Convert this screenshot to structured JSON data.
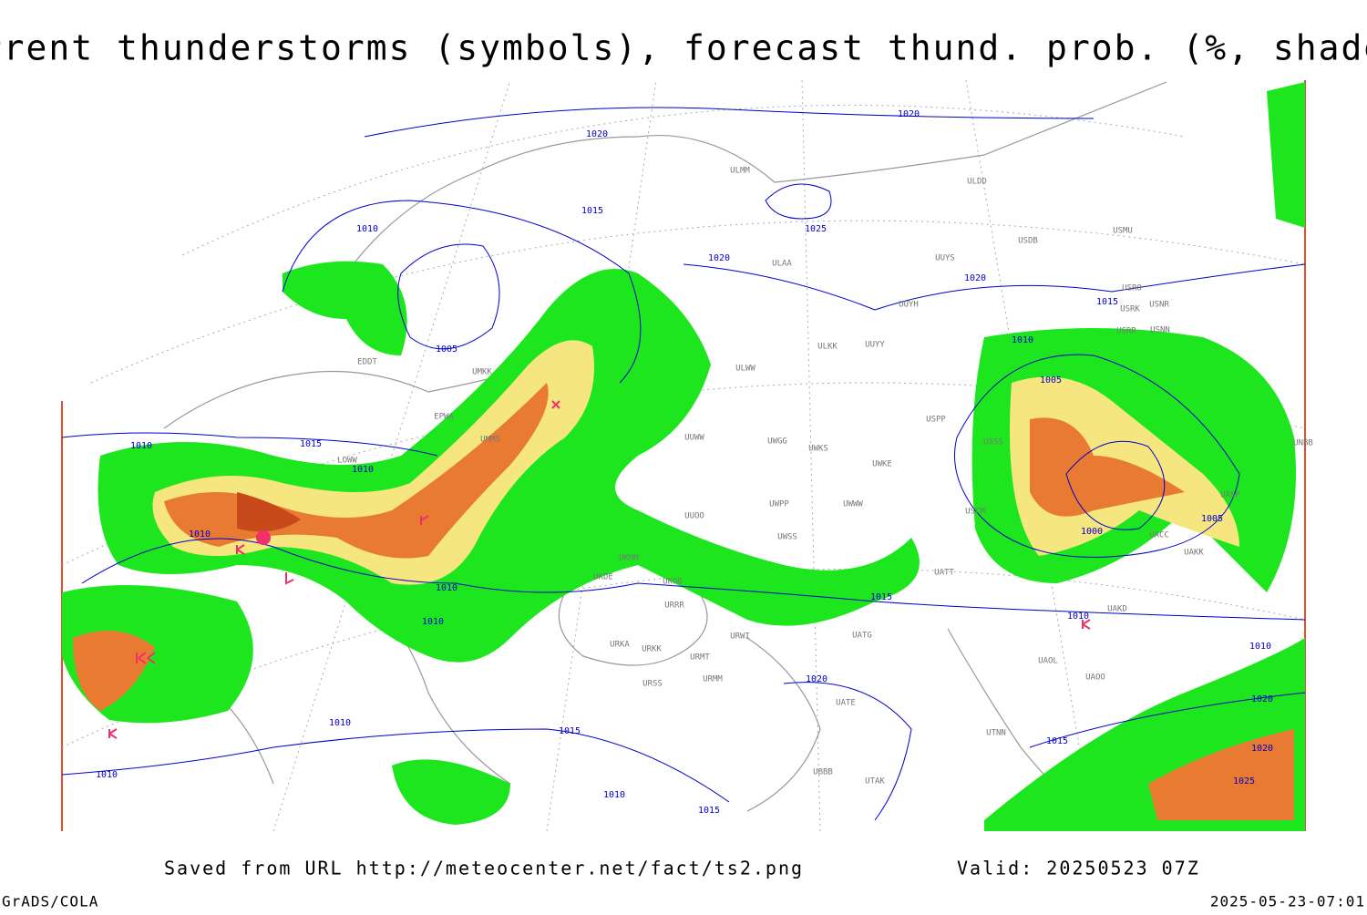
{
  "header": {
    "title": "Current thunderstorms (symbols), forecast thund. prob. (%, shaded)"
  },
  "footer": {
    "source": "Saved from URL http://meteocenter.net/fact/ts2.png",
    "valid": "Valid: 20250523 07Z",
    "software": "GrADS/COLA",
    "timestamp": "2025-05-23-07:01"
  },
  "isobar_labels": [
    1020,
    1020,
    1015,
    1010,
    1025,
    1020,
    1020,
    1015,
    1005,
    1010,
    1005,
    1010,
    1015,
    1010,
    1010,
    1010,
    1000,
    1005,
    1015,
    1010,
    1010,
    1010,
    1020,
    1020,
    1010,
    1015,
    1015,
    1010,
    1010,
    1015,
    1025,
    1020
  ],
  "stations": [
    "ULMM",
    "ULDD",
    "USMU",
    "USDB",
    "ULAA",
    "UUYS",
    "USRO",
    "USRK",
    "USNR",
    "UUYH",
    "USRR",
    "USNN",
    "ULKK",
    "UUYY",
    "ULWW",
    "EDDT",
    "UMKK",
    "EPWA",
    "UMMS",
    "UUWW",
    "UWGG",
    "UWKS",
    "UWKE",
    "USPP",
    "USSS",
    "USCM",
    "UWPP",
    "UWWW",
    "UWSS",
    "UUOO",
    "UKHH",
    "UKDE",
    "UKOO",
    "URRR",
    "URWI",
    "UATG",
    "URKA",
    "URKK",
    "URMT",
    "URMM",
    "URSS",
    "UATT",
    "UAKD",
    "UACC",
    "UAKK",
    "UASP",
    "UAOL",
    "UAOO",
    "UTNN",
    "UBBB",
    "UTAK",
    "LOWW",
    "UNBB",
    "UATE"
  ]
}
